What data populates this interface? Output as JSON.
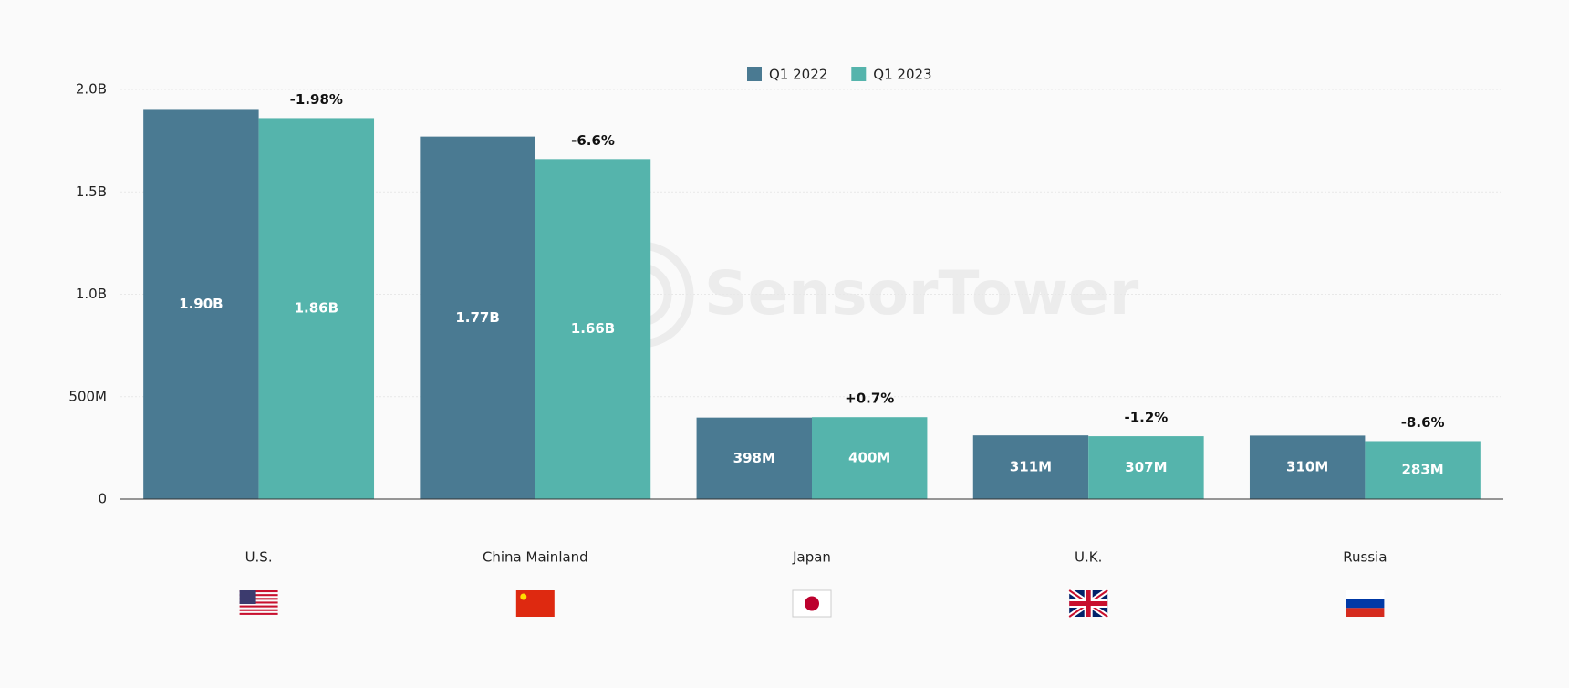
{
  "chart_data": {
    "type": "bar",
    "watermark": "SensorTower",
    "categories": [
      "U.S.",
      "China Mainland",
      "Japan",
      "U.K.",
      "Russia"
    ],
    "series": [
      {
        "name": "Q1 2022",
        "color": "#4a7a92",
        "values": [
          1900000000,
          1770000000,
          398000000,
          311000000,
          310000000
        ],
        "value_labels": [
          "1.90B",
          "1.77B",
          "398M",
          "311M",
          "310M"
        ]
      },
      {
        "name": "Q1 2023",
        "color": "#55b4ac",
        "values": [
          1860000000,
          1660000000,
          400000000,
          307000000,
          283000000
        ],
        "value_labels": [
          "1.86B",
          "1.66B",
          "400M",
          "307M",
          "283M"
        ]
      }
    ],
    "annotations": [
      "-1.98%",
      "-6.6%",
      "+0.7%",
      "-1.2%",
      "-8.6%"
    ],
    "ylim": [
      0,
      2000000000
    ],
    "yticks": [
      {
        "value": 0,
        "label": "0"
      },
      {
        "value": 500000000,
        "label": "500M"
      },
      {
        "value": 1000000000,
        "label": "1.0B"
      },
      {
        "value": 1500000000,
        "label": "1.5B"
      },
      {
        "value": 2000000000,
        "label": "2.0B"
      }
    ],
    "grid": true
  }
}
